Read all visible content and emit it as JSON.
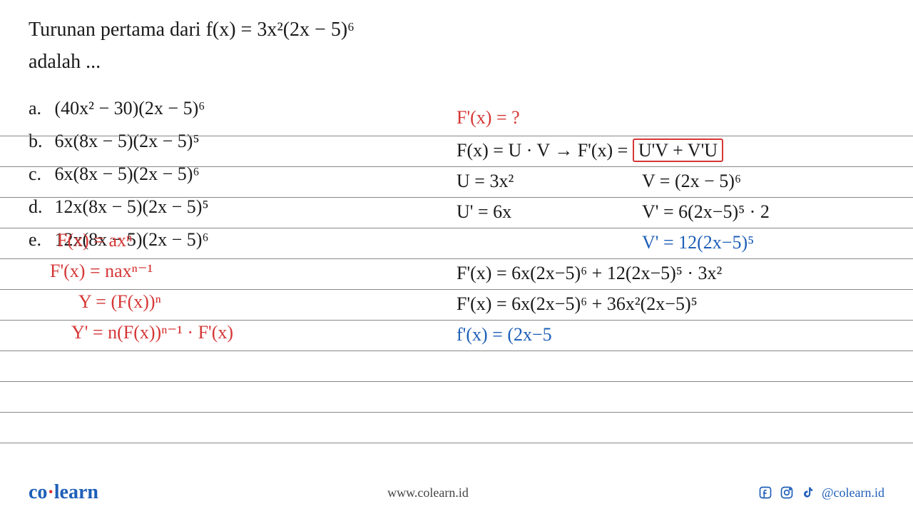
{
  "question": {
    "line1": "Turunan pertama dari f(x) = 3x²(2x − 5)⁶",
    "line2": "adalah ..."
  },
  "options": {
    "a": {
      "label": "a.",
      "text": "(40x² − 30)(2x − 5)⁶"
    },
    "b": {
      "label": "b.",
      "text": "6x(8x − 5)(2x − 5)⁵"
    },
    "c": {
      "label": "c.",
      "text": "6x(8x − 5)(2x − 5)⁶"
    },
    "d": {
      "label": "d.",
      "text": "12x(8x − 5)(2x − 5)⁵"
    },
    "e": {
      "label": "e.",
      "text": "12x(8x − 5)(2x − 5)⁶"
    }
  },
  "handwritten": {
    "left1": "F(x) = axⁿ",
    "left2": "F'(x) = naxⁿ⁻¹",
    "left3": "Y = (F(x))ⁿ",
    "left4": "Y' = n(F(x))ⁿ⁻¹ · F'(x)",
    "r1": "F'(x) = ?",
    "r2a": "F(x) = U · V → F'(x) =",
    "r2b": "U'V + V'U",
    "r3a": "U = 3x²",
    "r3b": "V = (2x − 5)⁶",
    "r4a": "U' = 6x",
    "r4b": "V' = 6(2x−5)⁵ · 2",
    "r5": "V' = 12(2x−5)⁵",
    "r6": "F'(x) = 6x(2x−5)⁶ + 12(2x−5)⁵ · 3x²",
    "r7": "F'(x) = 6x(2x−5)⁶ + 36x²(2x−5)⁵",
    "r8": "f'(x) = (2x−5"
  },
  "ruled_lines": {
    "color": "#888888",
    "positions": [
      190,
      233,
      276,
      319,
      362,
      405,
      448,
      491,
      534,
      577,
      620
    ]
  },
  "footer": {
    "logo_co": "co",
    "logo_learn": "learn",
    "url": "www.colearn.id",
    "handle": "@colearn.id"
  },
  "colors": {
    "red": "#d63636",
    "blue": "#1e5fb8",
    "black": "#1a1a1a",
    "background": "#ffffff"
  }
}
